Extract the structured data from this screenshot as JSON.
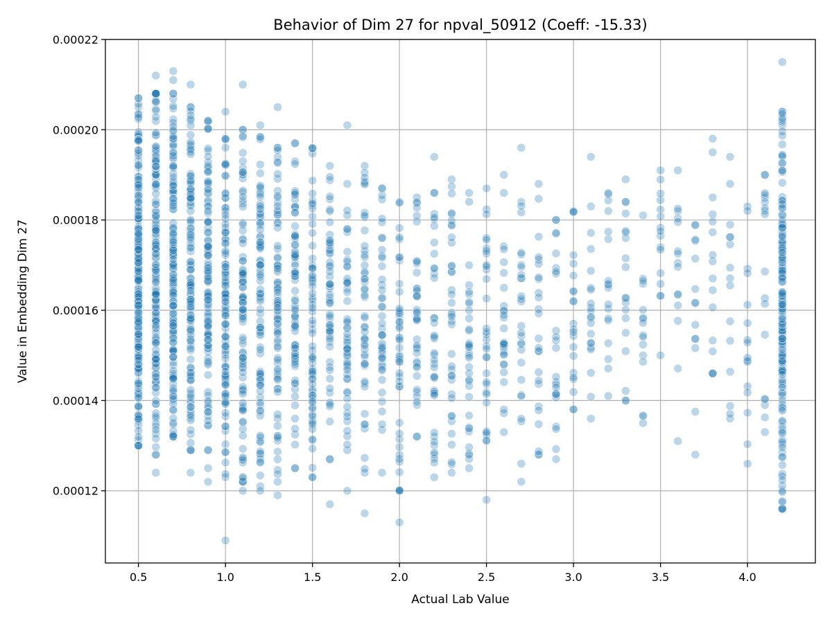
{
  "chart_data": {
    "type": "scatter",
    "title": "Behavior of Dim 27 for npval_50912 (Coeff: -15.33)",
    "xlabel": "Actual Lab Value",
    "ylabel": "Value in Embedding Dim 27",
    "xlim": [
      0.31,
      4.39
    ],
    "ylim": [
      0.000104,
      0.00022
    ],
    "xticks": [
      0.5,
      1.0,
      1.5,
      2.0,
      2.5,
      3.0,
      3.5,
      4.0
    ],
    "xtick_labels": [
      "0.5",
      "1.0",
      "1.5",
      "2.0",
      "2.5",
      "3.0",
      "3.5",
      "4.0"
    ],
    "yticks": [
      0.00012,
      0.00014,
      0.00016,
      0.00018,
      0.0002,
      0.00022
    ],
    "ytick_labels": [
      "0.00012",
      "0.00014",
      "0.00016",
      "0.00018",
      "0.00020",
      "0.00022"
    ],
    "grid": true,
    "legend": "none",
    "series_color": "#1f77b4",
    "columns": [
      {
        "x": 0.5,
        "n": 220,
        "ymin": 0.00013,
        "ymax": 0.000207,
        "outliers": []
      },
      {
        "x": 0.6,
        "n": 170,
        "ymin": 0.000128,
        "ymax": 0.000208,
        "outliers": [
          0.000124,
          0.000212
        ]
      },
      {
        "x": 0.7,
        "n": 160,
        "ymin": 0.000132,
        "ymax": 0.000208,
        "outliers": [
          0.000211,
          0.000213
        ]
      },
      {
        "x": 0.8,
        "n": 130,
        "ymin": 0.000129,
        "ymax": 0.000205,
        "outliers": [
          0.000124,
          0.00021
        ]
      },
      {
        "x": 0.9,
        "n": 120,
        "ymin": 0.000129,
        "ymax": 0.000202,
        "outliers": [
          0.000122,
          0.000125
        ]
      },
      {
        "x": 1.0,
        "n": 110,
        "ymin": 0.000123,
        "ymax": 0.000198,
        "outliers": [
          0.000109,
          0.000204
        ]
      },
      {
        "x": 1.1,
        "n": 100,
        "ymin": 0.000122,
        "ymax": 0.0002,
        "outliers": [
          0.00012,
          0.00021
        ]
      },
      {
        "x": 1.2,
        "n": 95,
        "ymin": 0.000121,
        "ymax": 0.000201,
        "outliers": [
          0.00012
        ]
      },
      {
        "x": 1.3,
        "n": 85,
        "ymin": 0.000122,
        "ymax": 0.000196,
        "outliers": [
          0.000119,
          0.000205
        ]
      },
      {
        "x": 1.4,
        "n": 80,
        "ymin": 0.000125,
        "ymax": 0.000197,
        "outliers": []
      },
      {
        "x": 1.5,
        "n": 70,
        "ymin": 0.000123,
        "ymax": 0.000196,
        "outliers": []
      },
      {
        "x": 1.6,
        "n": 60,
        "ymin": 0.000127,
        "ymax": 0.000192,
        "outliers": [
          0.000117
        ]
      },
      {
        "x": 1.7,
        "n": 55,
        "ymin": 0.000129,
        "ymax": 0.000188,
        "outliers": [
          0.00012,
          0.000201
        ]
      },
      {
        "x": 1.8,
        "n": 50,
        "ymin": 0.000124,
        "ymax": 0.000192,
        "outliers": [
          0.000115
        ]
      },
      {
        "x": 1.9,
        "n": 45,
        "ymin": 0.000124,
        "ymax": 0.000187,
        "outliers": []
      },
      {
        "x": 2.0,
        "n": 45,
        "ymin": 0.00012,
        "ymax": 0.000184,
        "outliers": [
          0.000113
        ]
      },
      {
        "x": 2.1,
        "n": 40,
        "ymin": 0.000132,
        "ymax": 0.000185,
        "outliers": []
      },
      {
        "x": 2.2,
        "n": 40,
        "ymin": 0.000123,
        "ymax": 0.000186,
        "outliers": [
          0.000194
        ]
      },
      {
        "x": 2.3,
        "n": 38,
        "ymin": 0.000124,
        "ymax": 0.000189,
        "outliers": []
      },
      {
        "x": 2.4,
        "n": 35,
        "ymin": 0.000125,
        "ymax": 0.000186,
        "outliers": []
      },
      {
        "x": 2.5,
        "n": 32,
        "ymin": 0.000131,
        "ymax": 0.000187,
        "outliers": [
          0.000118
        ]
      },
      {
        "x": 2.6,
        "n": 28,
        "ymin": 0.000133,
        "ymax": 0.000186,
        "outliers": [
          0.00019
        ]
      },
      {
        "x": 2.7,
        "n": 26,
        "ymin": 0.000126,
        "ymax": 0.000184,
        "outliers": [
          0.000122,
          0.000196
        ]
      },
      {
        "x": 2.8,
        "n": 25,
        "ymin": 0.000128,
        "ymax": 0.000188,
        "outliers": []
      },
      {
        "x": 2.9,
        "n": 24,
        "ymin": 0.000127,
        "ymax": 0.00018,
        "outliers": []
      },
      {
        "x": 3.0,
        "n": 22,
        "ymin": 0.000138,
        "ymax": 0.000182,
        "outliers": []
      },
      {
        "x": 3.1,
        "n": 20,
        "ymin": 0.000136,
        "ymax": 0.000183,
        "outliers": [
          0.000194
        ]
      },
      {
        "x": 3.2,
        "n": 18,
        "ymin": 0.000141,
        "ymax": 0.000186,
        "outliers": []
      },
      {
        "x": 3.3,
        "n": 18,
        "ymin": 0.00014,
        "ymax": 0.000184,
        "outliers": [
          0.000189
        ]
      },
      {
        "x": 3.4,
        "n": 16,
        "ymin": 0.000135,
        "ymax": 0.000181,
        "outliers": []
      },
      {
        "x": 3.5,
        "n": 16,
        "ymin": 0.00015,
        "ymax": 0.000191,
        "outliers": []
      },
      {
        "x": 3.6,
        "n": 15,
        "ymin": 0.000131,
        "ymax": 0.000191,
        "outliers": []
      },
      {
        "x": 3.7,
        "n": 14,
        "ymin": 0.000128,
        "ymax": 0.000179,
        "outliers": []
      },
      {
        "x": 3.8,
        "n": 14,
        "ymin": 0.000146,
        "ymax": 0.000185,
        "outliers": [
          0.000195,
          0.000198
        ]
      },
      {
        "x": 3.9,
        "n": 14,
        "ymin": 0.000136,
        "ymax": 0.000188,
        "outliers": [
          0.000194
        ]
      },
      {
        "x": 4.0,
        "n": 16,
        "ymin": 0.000126,
        "ymax": 0.000183,
        "outliers": []
      },
      {
        "x": 4.1,
        "n": 18,
        "ymin": 0.000133,
        "ymax": 0.00019,
        "outliers": []
      },
      {
        "x": 4.2,
        "n": 180,
        "ymin": 0.000116,
        "ymax": 0.000204,
        "outliers": [
          0.000215
        ]
      }
    ]
  }
}
